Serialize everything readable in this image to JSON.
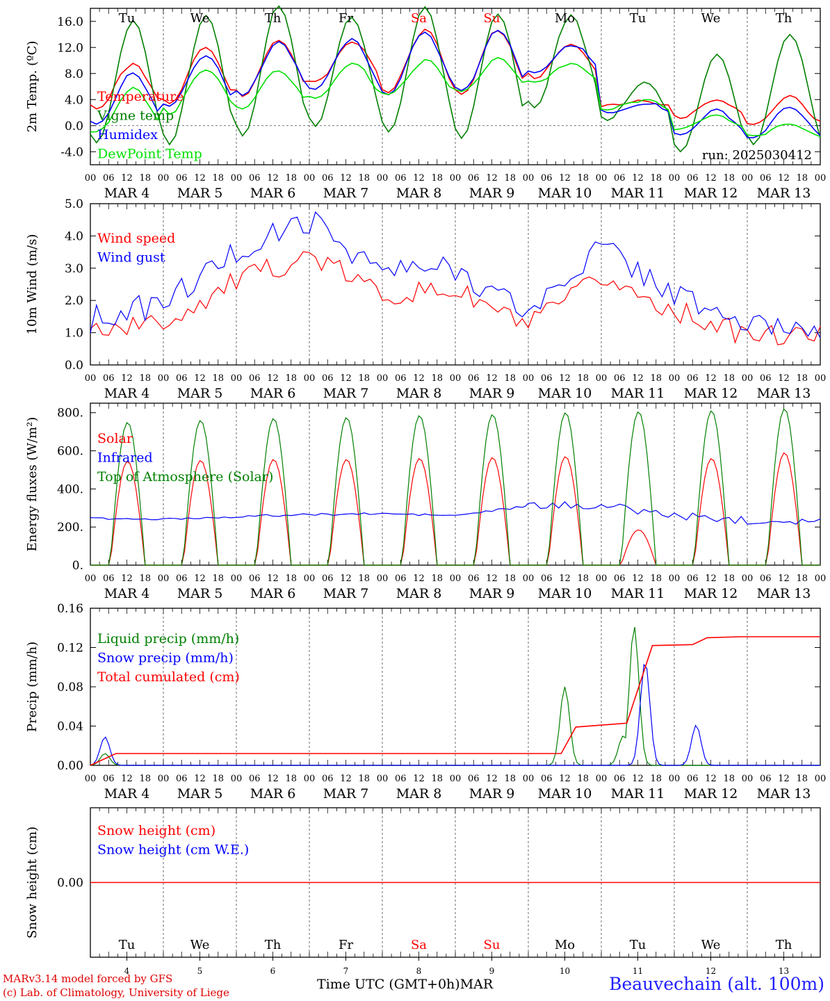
{
  "colors": {
    "red": "#ff0000",
    "green": "#008000",
    "blue": "#0000ff",
    "lightgreen": "#00e000",
    "axis": "#000000",
    "weekend": "#ff0000"
  },
  "days": [
    {
      "abbr": "Tu",
      "date": "MAR  4",
      "num": "4",
      "weekend": false
    },
    {
      "abbr": "We",
      "date": "MAR  5",
      "num": "5",
      "weekend": false
    },
    {
      "abbr": "Th",
      "date": "MAR  6",
      "num": "6",
      "weekend": false
    },
    {
      "abbr": "Fr",
      "date": "MAR  7",
      "num": "7",
      "weekend": false
    },
    {
      "abbr": "Sa",
      "date": "MAR  8",
      "num": "8",
      "weekend": true
    },
    {
      "abbr": "Su",
      "date": "MAR  9",
      "num": "9",
      "weekend": true
    },
    {
      "abbr": "Mo",
      "date": "MAR 10",
      "num": "10",
      "weekend": false
    },
    {
      "abbr": "Tu",
      "date": "MAR 11",
      "num": "11",
      "weekend": false
    },
    {
      "abbr": "We",
      "date": "MAR 12",
      "num": "12",
      "weekend": false
    },
    {
      "abbr": "Th",
      "date": "MAR 13",
      "num": "13",
      "weekend": false
    }
  ],
  "hour_ticks": [
    "00",
    "06",
    "12",
    "18"
  ],
  "final_hour_tick": "00",
  "footer": {
    "model_line": "MARv3.14 model forced by GFS",
    "credit_line": "(c) Lab. of Climatology, University of Liege",
    "time_label": "Time UTC (GMT+0h)",
    "month": "MAR",
    "station": "Beauvechain (alt. 100m)"
  },
  "chart_data": [
    {
      "type": "line",
      "ylabel": "2m Temp. (ºC)",
      "ylim": [
        -6,
        18
      ],
      "yticks": [
        "16.0",
        "12.0",
        "8.0",
        "4.0",
        "0.0",
        "-4.0"
      ],
      "ytick_values": [
        16,
        12,
        8,
        4,
        0,
        -4
      ],
      "annotation": "run: 2025030412",
      "zero_line": true,
      "series": [
        {
          "name": "Temperature",
          "color": "#ff0000",
          "key": "temp",
          "amps": [
            3.5,
            4.3,
            4.3,
            3.1,
            4.9,
            4.8,
            2.6,
            0.3,
            1.5,
            2.2
          ],
          "means": [
            6.0,
            7.8,
            8.9,
            9.8,
            9.8,
            9.8,
            10.0,
            3.5,
            2.7,
            2.3
          ]
        },
        {
          "name": "Vigne temp",
          "color": "#008000",
          "key": "vigne",
          "amps": [
            9.5,
            9.8,
            10.0,
            8.4,
            9.5,
            9.4,
            7.1,
            3.0,
            7.4,
            8.3
          ],
          "means": [
            6.6,
            7.0,
            8.5,
            8.4,
            8.5,
            7.7,
            9.8,
            3.8,
            3.6,
            5.6
          ]
        },
        {
          "name": "Humidex",
          "color": "#0000ff",
          "key": "humidex",
          "amps": [
            4.0,
            4.0,
            4.0,
            3.8,
            4.7,
            4.7,
            2.1,
            0.7,
            1.9,
            2.4
          ],
          "means": [
            4.1,
            6.9,
            8.8,
            9.3,
            9.6,
            9.8,
            10.4,
            2.7,
            0.4,
            0.3
          ]
        },
        {
          "name": "DewPoint Temp",
          "color": "#00e000",
          "key": "dew",
          "amps": [
            3.5,
            3.4,
            2.8,
            2.6,
            2.7,
            2.5,
            1.4,
            0.8,
            0.9,
            0.9
          ],
          "means": [
            2.4,
            5.3,
            5.6,
            7.0,
            7.3,
            7.8,
            8.0,
            3.2,
            0.5,
            -0.7
          ]
        }
      ]
    },
    {
      "type": "line",
      "ylabel": "10m Wind (m/s)",
      "ylim": [
        0,
        5
      ],
      "yticks": [
        "5.0",
        "4.0",
        "3.0",
        "2.0",
        "1.0",
        "0.0"
      ],
      "ytick_values": [
        5,
        4,
        3,
        2,
        1,
        0
      ],
      "series": [
        {
          "name": "Wind speed",
          "color": "#ff0000",
          "key": "wspd",
          "daily": [
            1.1,
            1.3,
            2.6,
            3.4,
            2.2,
            2.3,
            1.2,
            2.7,
            1.7,
            0.9
          ]
        },
        {
          "name": "Wind gust",
          "color": "#0000ff",
          "key": "wgust",
          "daily": [
            1.4,
            1.9,
            3.5,
            4.5,
            2.9,
            3.0,
            1.6,
            3.7,
            2.2,
            1.2
          ]
        }
      ]
    },
    {
      "type": "line",
      "ylabel": "Energy fluxes (W/m²)",
      "ylim": [
        0,
        850
      ],
      "yticks": [
        "800.",
        "600.",
        "400.",
        "200.",
        "0."
      ],
      "ytick_values": [
        800,
        600,
        400,
        200,
        0
      ],
      "series": [
        {
          "name": "Solar",
          "color": "#ff0000",
          "key": "solar",
          "peaks": [
            545,
            550,
            555,
            555,
            560,
            565,
            570,
            185,
            560,
            590
          ]
        },
        {
          "name": "Infrared",
          "color": "#0000ff",
          "key": "ir",
          "daily": [
            245,
            240,
            255,
            265,
            270,
            260,
            310,
            315,
            260,
            235
          ]
        },
        {
          "name": "Top of Atmosphere (Solar)",
          "color": "#008000",
          "key": "toa",
          "peaks": [
            735,
            745,
            755,
            760,
            770,
            775,
            785,
            790,
            795,
            805
          ]
        }
      ]
    },
    {
      "type": "line",
      "ylabel": "Precip (mm/h)",
      "ylim": [
        0,
        0.16
      ],
      "yticks": [
        "0.16",
        "0.12",
        "0.08",
        "0.04",
        "0.00"
      ],
      "ytick_values": [
        0.16,
        0.12,
        0.08,
        0.04,
        0
      ],
      "series": [
        {
          "name": "Liquid precip (mm/h)",
          "color": "#008000",
          "key": "liq",
          "peaks": [
            [
              0.2,
              0.012
            ],
            [
              6.5,
              0.08
            ],
            [
              7.45,
              0.142
            ],
            [
              7.3,
              0.03
            ]
          ]
        },
        {
          "name": "Snow precip (mm/h)",
          "color": "#0000ff",
          "key": "snow",
          "peaks": [
            [
              0.2,
              0.029
            ],
            [
              7.6,
              0.106
            ],
            [
              8.3,
              0.041
            ]
          ]
        },
        {
          "name": "Total cumulated (cm)",
          "color": "#ff0000",
          "key": "cum",
          "steps": [
            [
              0.0,
              0.0
            ],
            [
              0.35,
              0.012
            ],
            [
              6.45,
              0.012
            ],
            [
              6.65,
              0.039
            ],
            [
              7.35,
              0.043
            ],
            [
              7.7,
              0.122
            ],
            [
              8.25,
              0.123
            ],
            [
              8.45,
              0.13
            ],
            [
              8.9,
              0.131
            ],
            [
              10.0,
              0.131
            ]
          ]
        }
      ]
    },
    {
      "type": "line",
      "ylabel": "Snow height (cm)",
      "ylim": [
        -0.01,
        0.01
      ],
      "yticks": [
        "0.00"
      ],
      "ytick_values": [
        0
      ],
      "series": [
        {
          "name": "Snow height (cm)",
          "color": "#ff0000",
          "key": "sh",
          "values": [
            0,
            0
          ]
        },
        {
          "name": "Snow height (cm W.E.)",
          "color": "#0000ff",
          "key": "shwe",
          "values": [
            0,
            0
          ]
        }
      ]
    }
  ]
}
